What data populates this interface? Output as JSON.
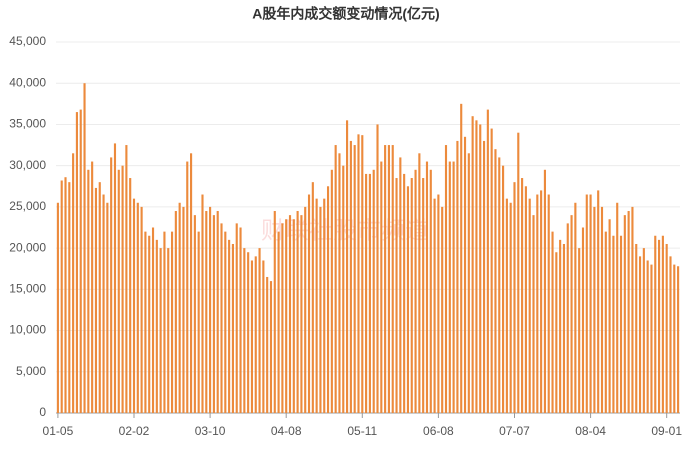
{
  "chart_data": {
    "type": "bar",
    "title": "A股年内成交额变动情况(亿元)",
    "watermark": "财联社股市频道",
    "categories": [
      "01-05",
      null,
      null,
      null,
      null,
      null,
      null,
      null,
      null,
      null,
      null,
      null,
      null,
      null,
      null,
      null,
      null,
      null,
      null,
      null,
      "02-02",
      null,
      null,
      null,
      null,
      null,
      null,
      null,
      null,
      null,
      null,
      null,
      null,
      null,
      null,
      null,
      null,
      null,
      null,
      null,
      "03-10",
      null,
      null,
      null,
      null,
      null,
      null,
      null,
      null,
      null,
      null,
      null,
      null,
      null,
      null,
      null,
      null,
      null,
      null,
      null,
      "04-08",
      null,
      null,
      null,
      null,
      null,
      null,
      null,
      null,
      null,
      null,
      null,
      null,
      null,
      null,
      null,
      null,
      null,
      null,
      null,
      "05-11",
      null,
      null,
      null,
      null,
      null,
      null,
      null,
      null,
      null,
      null,
      null,
      null,
      null,
      null,
      null,
      null,
      null,
      null,
      null,
      "06-08",
      null,
      null,
      null,
      null,
      null,
      null,
      null,
      null,
      null,
      null,
      null,
      null,
      null,
      null,
      null,
      null,
      null,
      null,
      null,
      "07-07",
      null,
      null,
      null,
      null,
      null,
      null,
      null,
      null,
      null,
      null,
      null,
      null,
      null,
      null,
      null,
      null,
      null,
      null,
      null,
      "08-04",
      null,
      null,
      null,
      null,
      null,
      null,
      null,
      null,
      null,
      null,
      null,
      null,
      null,
      null,
      null,
      null,
      null,
      null,
      null,
      "09-01",
      null,
      null,
      null
    ],
    "values": [
      25500,
      28200,
      28600,
      28000,
      31500,
      36500,
      36800,
      40000,
      29500,
      30500,
      27300,
      28000,
      26500,
      25500,
      31000,
      32700,
      29500,
      30000,
      32500,
      28500,
      26000,
      25500,
      25000,
      22000,
      21500,
      22500,
      21000,
      20000,
      22000,
      20000,
      22000,
      24500,
      25500,
      25000,
      30500,
      31500,
      24000,
      22000,
      26500,
      24500,
      25000,
      24000,
      24500,
      23000,
      22000,
      21000,
      20500,
      23000,
      22500,
      20000,
      19500,
      18500,
      19000,
      20000,
      18500,
      16500,
      16000,
      24500,
      22000,
      23000,
      23500,
      24000,
      23500,
      24500,
      24000,
      25000,
      26500,
      28000,
      26000,
      25000,
      26000,
      27500,
      29500,
      32500,
      31500,
      30000,
      35500,
      33000,
      32500,
      33800,
      33700,
      29000,
      29000,
      29500,
      35000,
      30500,
      32500,
      32500,
      32500,
      28500,
      31000,
      29000,
      27500,
      28500,
      29500,
      31500,
      28500,
      30500,
      29500,
      26000,
      26500,
      25000,
      32500,
      30500,
      30500,
      33000,
      37500,
      33500,
      31500,
      36000,
      35500,
      35000,
      33000,
      36800,
      34500,
      32000,
      31000,
      30000,
      26000,
      25500,
      28000,
      34000,
      28500,
      27500,
      26000,
      24000,
      26500,
      27000,
      29500,
      26500,
      22000,
      19500,
      21000,
      20500,
      23000,
      24000,
      25500,
      20000,
      22500,
      26500,
      26500,
      25000,
      27000,
      25000,
      22000,
      23500,
      21500,
      25500,
      21500,
      24000,
      24500,
      25000,
      20500,
      19000,
      20000,
      18500,
      18000,
      21500,
      21000,
      21500,
      20500,
      19000,
      18000,
      17800
    ],
    "color": "#ec8a3c",
    "ylim": [
      0,
      45000
    ],
    "yticks": [
      0,
      {
        "value": 5000,
        "label": "5,000"
      },
      {
        "value": 10000,
        "label": "10,000"
      },
      {
        "value": 15000,
        "label": "15,000"
      },
      {
        "value": 20000,
        "label": "20,000"
      },
      {
        "value": 25000,
        "label": "25,000"
      },
      {
        "value": 30000,
        "label": "30,000"
      },
      {
        "value": 35000,
        "label": "35,000"
      },
      {
        "value": 40000,
        "label": "40,000"
      },
      {
        "value": 45000,
        "label": "45,000"
      }
    ],
    "grid": true
  }
}
